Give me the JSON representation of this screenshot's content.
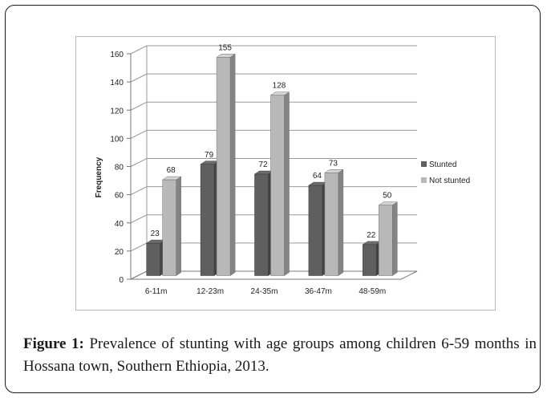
{
  "caption": {
    "label": "Figure 1:",
    "text": "Prevalence of stunting with age groups among children 6-59 months in Hossana town, Southern Ethiopia, 2013."
  },
  "chart_data": {
    "type": "bar",
    "categories": [
      "6-11m",
      "12-23m",
      "24-35m",
      "36-47m",
      "48-59m"
    ],
    "series": [
      {
        "name": "Stunted",
        "values": [
          23,
          79,
          72,
          64,
          22
        ],
        "color": "#5f5f5f"
      },
      {
        "name": "Not stunted",
        "values": [
          68,
          155,
          128,
          73,
          50
        ],
        "color": "#b8b8b8"
      }
    ],
    "ylabel": "Frequency",
    "ylim": [
      0,
      160
    ],
    "yticks": [
      0,
      20,
      40,
      60,
      80,
      100,
      120,
      140,
      160
    ],
    "grid": true,
    "legend": "right",
    "style": "3d-clustered-column"
  }
}
